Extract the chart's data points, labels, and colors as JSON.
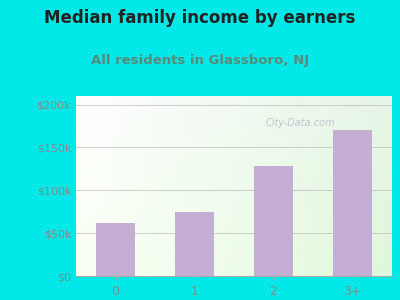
{
  "title": "Median family income by earners",
  "subtitle": "All residents in Glassboro, NJ",
  "categories": [
    "0",
    "1",
    "2",
    "3+"
  ],
  "values": [
    62000,
    75000,
    128000,
    170000
  ],
  "bar_color": "#c4aed4",
  "title_color": "#222222",
  "subtitle_color": "#5a8a7a",
  "tick_color": "#888888",
  "background_outer": "#00e8e8",
  "ylim": [
    0,
    210000
  ],
  "yticks": [
    0,
    50000,
    100000,
    150000,
    200000
  ],
  "ytick_labels": [
    "$0",
    "$50k",
    "$100k",
    "$150k",
    "$200k"
  ],
  "watermark": "City-Data.com",
  "title_fontsize": 12,
  "subtitle_fontsize": 9.5
}
